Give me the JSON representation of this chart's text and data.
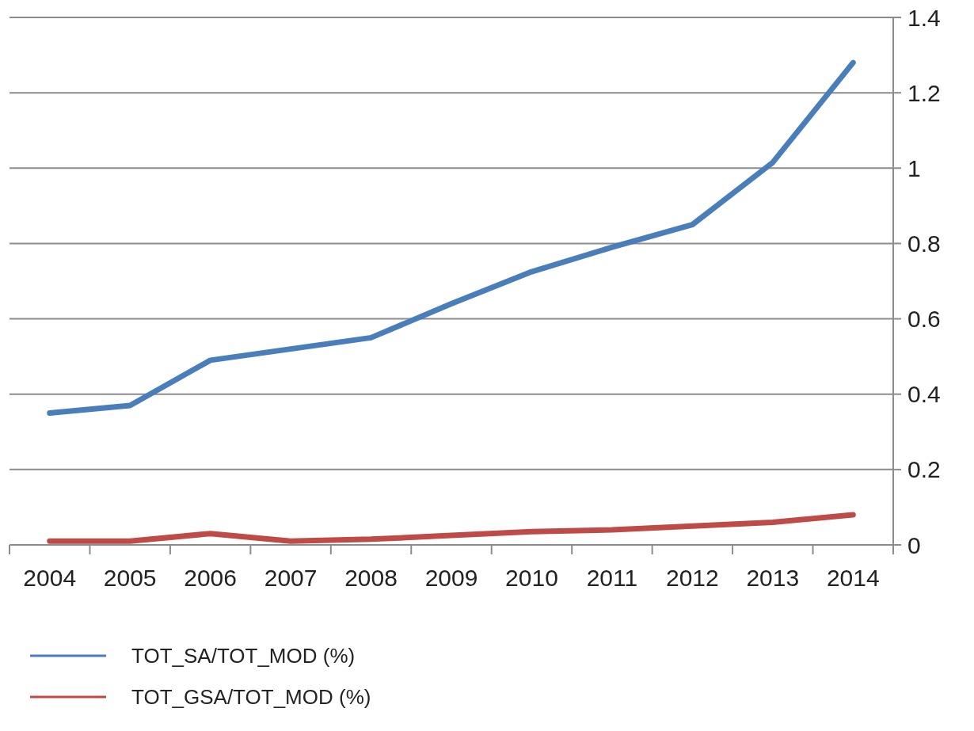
{
  "chart_data": {
    "type": "line",
    "categories": [
      "2004",
      "2005",
      "2006",
      "2007",
      "2008",
      "2009",
      "2010",
      "2011",
      "2012",
      "2013",
      "2014"
    ],
    "series": [
      {
        "name": "TOT_SA/TOT_MOD (%)",
        "color": "#4a7ebb",
        "values": [
          0.35,
          0.37,
          0.49,
          0.52,
          0.55,
          0.64,
          0.725,
          0.79,
          0.85,
          1.015,
          1.28
        ]
      },
      {
        "name": "TOT_GSA/TOT_MOD (%)",
        "color": "#be4b48",
        "values": [
          0.01,
          0.01,
          0.03,
          0.01,
          0.015,
          0.025,
          0.035,
          0.04,
          0.05,
          0.06,
          0.08
        ]
      }
    ],
    "ylim": [
      0,
      1.4
    ],
    "yticks": [
      0,
      0.2,
      0.4,
      0.6,
      0.8,
      1,
      1.2,
      1.4
    ],
    "grid": "y",
    "legend": "bottom left",
    "line_style": "solid",
    "marker": "none"
  }
}
